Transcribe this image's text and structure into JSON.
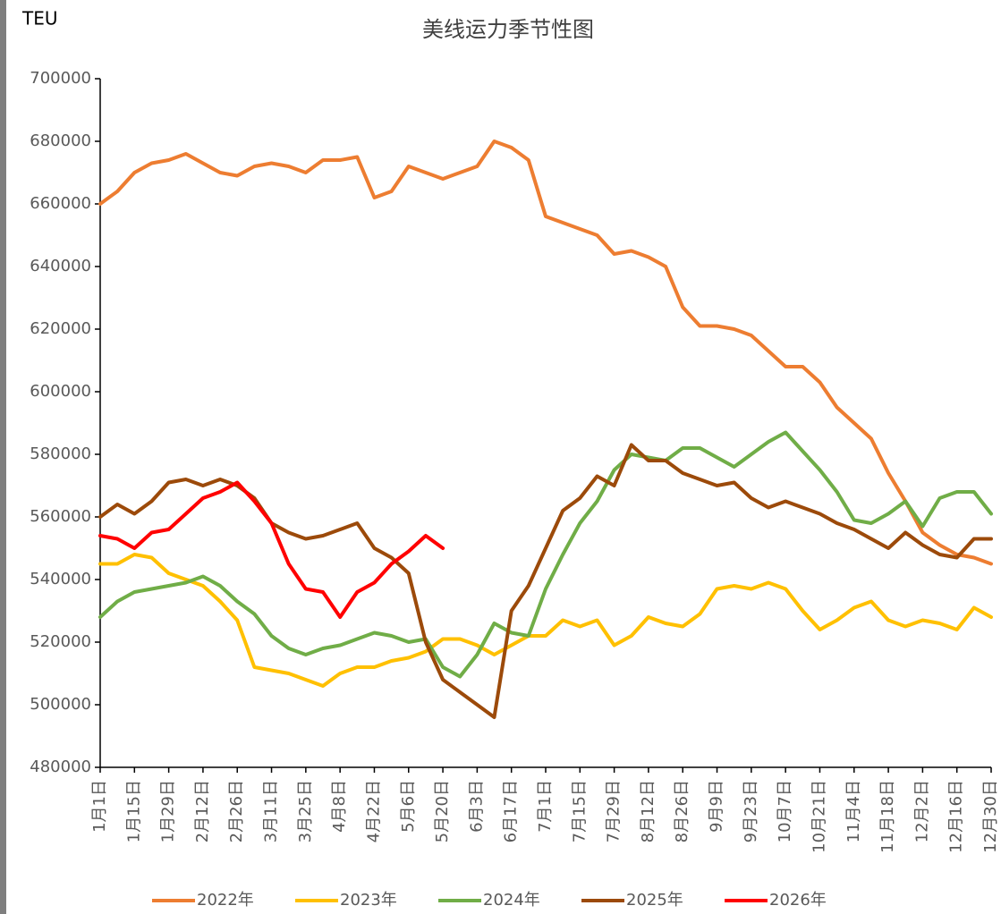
{
  "chart_data": {
    "type": "line",
    "title": "美线运力季节性图",
    "y_label": "TEU",
    "categories": [
      "1月1日",
      null,
      "1月15日",
      null,
      "1月29日",
      null,
      "2月12日",
      null,
      "2月26日",
      null,
      "3月11日",
      null,
      "3月25日",
      null,
      "4月8日",
      null,
      "4月22日",
      null,
      "5月6日",
      null,
      "5月20日",
      null,
      "6月3日",
      null,
      "6月17日",
      null,
      "7月1日",
      null,
      "7月15日",
      null,
      "7月29日",
      null,
      "8月12日",
      null,
      "8月26日",
      null,
      "9月9日",
      null,
      "9月23日",
      null,
      "10月7日",
      null,
      "10月21日",
      null,
      "11月4日",
      null,
      "11月18日",
      null,
      "12月2日",
      null,
      "12月16日",
      null,
      "12月30日"
    ],
    "series": [
      {
        "name": "2022年",
        "color": "#ed7d31",
        "values": [
          660000,
          664000,
          670000,
          673000,
          674000,
          676000,
          673000,
          670000,
          669000,
          672000,
          673000,
          672000,
          670000,
          674000,
          674000,
          675000,
          662000,
          664000,
          672000,
          670000,
          668000,
          670000,
          672000,
          680000,
          678000,
          674000,
          656000,
          654000,
          652000,
          650000,
          644000,
          645000,
          643000,
          640000,
          627000,
          621000,
          621000,
          620000,
          618000,
          613000,
          608000,
          608000,
          603000,
          595000,
          590000,
          585000,
          574000,
          565000,
          555000,
          551000,
          548000,
          547000,
          545000
        ]
      },
      {
        "name": "2023年",
        "color": "#ffc000",
        "values": [
          545000,
          545000,
          548000,
          547000,
          542000,
          540000,
          538000,
          533000,
          527000,
          512000,
          511000,
          510000,
          508000,
          506000,
          510000,
          512000,
          512000,
          514000,
          515000,
          517000,
          521000,
          521000,
          519000,
          516000,
          519000,
          522000,
          522000,
          527000,
          525000,
          527000,
          519000,
          522000,
          528000,
          526000,
          525000,
          529000,
          537000,
          538000,
          537000,
          539000,
          537000,
          530000,
          524000,
          527000,
          531000,
          533000,
          527000,
          525000,
          527000,
          526000,
          524000,
          531000,
          528000
        ]
      },
      {
        "name": "2024年",
        "color": "#70ad47",
        "values": [
          528000,
          533000,
          536000,
          537000,
          538000,
          539000,
          541000,
          538000,
          533000,
          529000,
          522000,
          518000,
          516000,
          518000,
          519000,
          521000,
          523000,
          522000,
          520000,
          521000,
          512000,
          509000,
          516000,
          526000,
          523000,
          522000,
          537000,
          548000,
          558000,
          565000,
          575000,
          580000,
          579000,
          578000,
          582000,
          582000,
          579000,
          576000,
          580000,
          584000,
          587000,
          581000,
          575000,
          568000,
          559000,
          558000,
          561000,
          565000,
          557000,
          566000,
          568000,
          568000,
          561000
        ]
      },
      {
        "name": "2025年",
        "color": "#9c4a0a",
        "values": [
          560000,
          564000,
          561000,
          565000,
          571000,
          572000,
          570000,
          572000,
          570000,
          566000,
          558000,
          555000,
          553000,
          554000,
          556000,
          558000,
          550000,
          547000,
          542000,
          520000,
          508000,
          504000,
          500000,
          496000,
          530000,
          538000,
          550000,
          562000,
          566000,
          573000,
          570000,
          583000,
          578000,
          578000,
          574000,
          572000,
          570000,
          571000,
          566000,
          563000,
          565000,
          563000,
          561000,
          558000,
          556000,
          553000,
          550000,
          555000,
          551000,
          548000,
          547000,
          553000,
          553000
        ]
      },
      {
        "name": "2026年",
        "color": "#ff0000",
        "values": [
          554000,
          553000,
          550000,
          555000,
          556000,
          561000,
          566000,
          568000,
          571000,
          565000,
          558000,
          545000,
          537000,
          536000,
          528000,
          536000,
          539000,
          545000,
          549000,
          554000,
          550000,
          null,
          null,
          null,
          null,
          null,
          null,
          null,
          null,
          null,
          null,
          null,
          null,
          null,
          null,
          null,
          null,
          null,
          null,
          null,
          null,
          null,
          null,
          null,
          null,
          null,
          null,
          null,
          null,
          null,
          null,
          null,
          null
        ]
      }
    ],
    "ylim": [
      480000,
      700000
    ],
    "yticks": [
      480000,
      500000,
      520000,
      540000,
      560000,
      580000,
      600000,
      620000,
      640000,
      660000,
      680000,
      700000
    ],
    "grid": false,
    "legend": "bottom"
  }
}
